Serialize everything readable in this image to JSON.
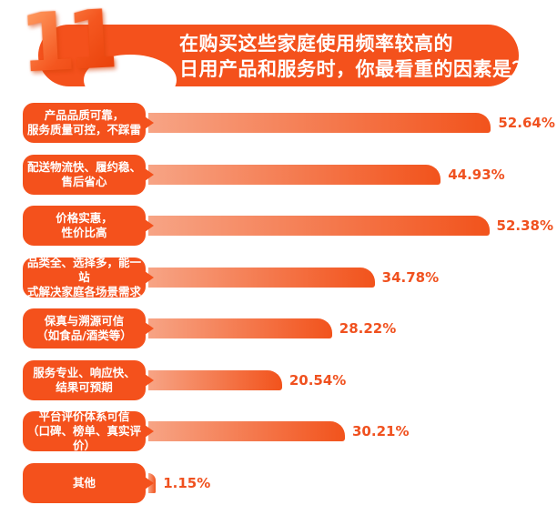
{
  "badge": {
    "number": "11"
  },
  "header": {
    "title_line1": "在购买这些家庭使用频率较高的",
    "title_line2": "日用产品和服务时，你最看重的因素是？"
  },
  "colors": {
    "primary": "#F4511C",
    "bar_start": "#F7A485",
    "bar_end": "#F2531C",
    "value_text": "#F0511F",
    "title_text": "#FFFFFF"
  },
  "chart_data": {
    "type": "bar",
    "orientation": "horizontal",
    "title": "在购买这些家庭使用频率较高的日用产品和服务时，你最看重的因素是？",
    "unit": "%",
    "xlim": [
      0,
      55
    ],
    "grid": false,
    "legend": false,
    "categories": [
      "产品品质可靠，服务质量可控，不踩雷",
      "配送物流快、履约稳、售后省心",
      "价格实惠，性价比高",
      "品类全、选择多，能一站式解决家庭各场景需求",
      "保真与溯源可信（如食品/酒类等）",
      "服务专业、响应快、结果可预期",
      "平台评价体系可信（口碑、榜单、真实评价）",
      "其他"
    ],
    "values": [
      52.64,
      44.93,
      52.38,
      34.78,
      28.22,
      20.54,
      30.21,
      1.15
    ],
    "rows": [
      {
        "label_lines": [
          "产品品质可靠，",
          "服务质量可控，不踩雷"
        ],
        "value": 52.64,
        "value_label": "52.64%"
      },
      {
        "label_lines": [
          "配送物流快、履约稳、",
          "售后省心"
        ],
        "value": 44.93,
        "value_label": "44.93%"
      },
      {
        "label_lines": [
          "价格实惠，",
          "性价比高"
        ],
        "value": 52.38,
        "value_label": "52.38%"
      },
      {
        "label_lines": [
          "品类全、选择多，能一站",
          "式解决家庭各场景需求"
        ],
        "value": 34.78,
        "value_label": "34.78%"
      },
      {
        "label_lines": [
          "保真与溯源可信",
          "（如食品/酒类等）"
        ],
        "value": 28.22,
        "value_label": "28.22%"
      },
      {
        "label_lines": [
          "服务专业、响应快、",
          "结果可预期"
        ],
        "value": 20.54,
        "value_label": "20.54%"
      },
      {
        "label_lines": [
          "平台评价体系可信",
          "（口碑、榜单、真实评价）"
        ],
        "value": 30.21,
        "value_label": "30.21%"
      },
      {
        "label_lines": [
          "其他"
        ],
        "value": 1.15,
        "value_label": "1.15%"
      }
    ]
  }
}
